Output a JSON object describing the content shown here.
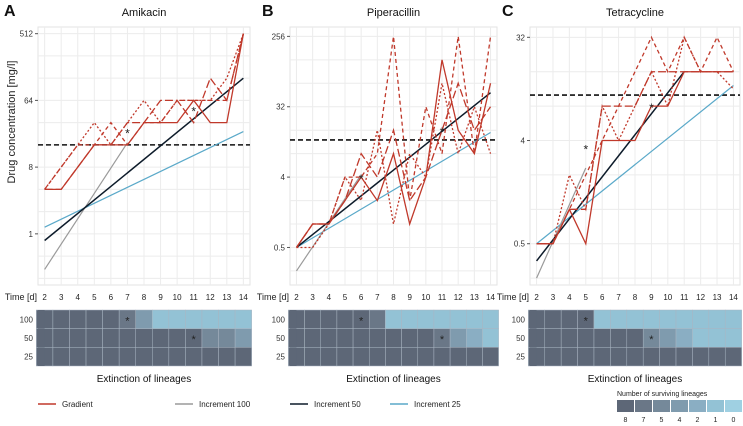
{
  "shared": {
    "ylabel": "Drug concentration [mg/l]",
    "time_label": "Time [d]",
    "extinction_label": "Extinction of lineages",
    "days": [
      2,
      3,
      4,
      5,
      6,
      7,
      8,
      9,
      10,
      11,
      12,
      13,
      14
    ],
    "heat_rows": [
      "100",
      "50",
      "25"
    ],
    "asterisk": "*"
  },
  "legend": {
    "items": [
      {
        "key": "gradient",
        "label": "Gradient",
        "color": "#c0392b"
      },
      {
        "key": "inc100",
        "label": "Increment 100",
        "color": "#9a9a9a"
      },
      {
        "key": "inc50",
        "label": "Increment 50",
        "color": "#0d1b2a"
      },
      {
        "key": "inc25",
        "label": "Increment 25",
        "color": "#5aa9c9"
      }
    ],
    "colorbar_title": "Number of surviving lineages",
    "colorbar_labels": [
      "8",
      "7",
      "5",
      "4",
      "2",
      "1",
      "0"
    ],
    "colorbar_colors": [
      "#5d6777",
      "#6a7787",
      "#75899a",
      "#7f9bae",
      "#8aaec3",
      "#93c2d5",
      "#9fd0e2"
    ]
  },
  "chart_data": [
    {
      "type": "line",
      "panel_letter": "A",
      "title": "Amikacin",
      "yscale": "log2",
      "ylim_log2": [
        -2.3,
        9.3
      ],
      "yticks": [
        {
          "value": 1,
          "label": "1"
        },
        {
          "value": 8,
          "label": "8"
        },
        {
          "value": 64,
          "label": "64"
        },
        {
          "value": 512,
          "label": "512"
        }
      ],
      "threshold": 16,
      "gradient_replicates": [
        {
          "style": "solid",
          "values_log2": [
            2,
            2,
            3,
            4,
            4,
            4,
            5,
            5,
            5,
            6,
            5,
            5,
            9
          ]
        },
        {
          "style": "dotted",
          "values_log2": [
            2,
            3,
            4,
            5,
            4,
            5,
            6,
            5,
            6,
            6,
            6,
            7,
            9
          ]
        },
        {
          "style": "dashed",
          "values_log2": [
            2,
            3,
            4,
            4,
            5,
            4,
            5,
            5,
            6,
            6,
            6,
            6,
            9
          ]
        },
        {
          "style": "longdash",
          "values_log2": [
            2,
            2,
            3,
            4,
            4,
            5,
            5,
            6,
            6,
            5,
            7,
            6,
            9
          ]
        }
      ],
      "increments": {
        "inc100": {
          "x": [
            2,
            7
          ],
          "log2": [
            -1.6,
            4.1
          ]
        },
        "inc50": {
          "x": [
            2,
            14
          ],
          "log2": [
            -0.3,
            7.0
          ]
        },
        "inc25": {
          "x": [
            2,
            14
          ],
          "log2": [
            0.3,
            4.6
          ]
        }
      },
      "asterisks": [
        {
          "day": 7,
          "log2": 4.6
        },
        {
          "day": 11,
          "log2": 5.6
        }
      ],
      "heatmap": [
        [
          8,
          8,
          8,
          8,
          8,
          7,
          4,
          1,
          1,
          1,
          1,
          1,
          1
        ],
        [
          8,
          8,
          8,
          8,
          8,
          8,
          8,
          8,
          8,
          8,
          5,
          5,
          4
        ],
        [
          8,
          8,
          8,
          8,
          8,
          8,
          8,
          8,
          8,
          8,
          8,
          8,
          8
        ]
      ],
      "heat_asterisks": [
        {
          "row": 0,
          "day": 7
        },
        {
          "row": 1,
          "day": 11
        }
      ]
    },
    {
      "type": "line",
      "panel_letter": "B",
      "title": "Piperacillin",
      "yscale": "log2",
      "ylim_log2": [
        -2.6,
        8.4
      ],
      "yticks": [
        {
          "value": 0.5,
          "label": "0.5"
        },
        {
          "value": 4,
          "label": "4"
        },
        {
          "value": 32,
          "label": "32"
        },
        {
          "value": 256,
          "label": "256"
        }
      ],
      "threshold": 12,
      "gradient_replicates": [
        {
          "style": "solid",
          "values_log2": [
            -1,
            0,
            0,
            1,
            2,
            1,
            3,
            0,
            2,
            7,
            4,
            3,
            6
          ]
        },
        {
          "style": "dotted",
          "values_log2": [
            -1,
            -1,
            0,
            2,
            1,
            4,
            0,
            3,
            2,
            6,
            3,
            5,
            3
          ]
        },
        {
          "style": "dashed",
          "values_log2": [
            -1,
            0,
            0,
            2,
            2,
            3,
            8,
            1,
            5,
            3,
            8,
            3,
            8
          ]
        },
        {
          "style": "longdash",
          "values_log2": [
            -1,
            0,
            0,
            1,
            3,
            2,
            4,
            1,
            2,
            4,
            6,
            4,
            5
          ]
        }
      ],
      "increments": {
        "inc100": {
          "x": [
            2,
            6
          ],
          "log2": [
            -2.0,
            2.1
          ]
        },
        "inc50": {
          "x": [
            2,
            14
          ],
          "log2": [
            -1.0,
            5.6
          ]
        },
        "inc25": {
          "x": [
            2,
            14
          ],
          "log2": [
            -1.0,
            3.9
          ]
        }
      },
      "asterisks": [
        {
          "day": 6,
          "log2": 2.0
        },
        {
          "day": 11,
          "log2": 4.0
        }
      ],
      "heatmap": [
        [
          8,
          8,
          8,
          8,
          8,
          7,
          1,
          1,
          1,
          1,
          1,
          1,
          1
        ],
        [
          8,
          8,
          8,
          8,
          8,
          8,
          8,
          8,
          8,
          7,
          4,
          2,
          1
        ],
        [
          8,
          8,
          8,
          8,
          8,
          8,
          8,
          8,
          8,
          8,
          8,
          8,
          8
        ]
      ],
      "heat_asterisks": [
        {
          "row": 0,
          "day": 6
        },
        {
          "row": 1,
          "day": 11
        }
      ]
    },
    {
      "type": "line",
      "panel_letter": "C",
      "title": "Tetracycline",
      "yscale": "log2",
      "ylim_log2": [
        -2.2,
        5.3
      ],
      "yticks": [
        {
          "value": 0.5,
          "label": "0.5"
        },
        {
          "value": 4,
          "label": "4"
        },
        {
          "value": 32,
          "label": "32"
        }
      ],
      "threshold": 10,
      "gradient_replicates": [
        {
          "style": "solid",
          "values_log2": [
            -1,
            -1,
            0,
            -1,
            2,
            2,
            2,
            3,
            3,
            4,
            4,
            4,
            4
          ]
        },
        {
          "style": "dotted",
          "values_log2": [
            -1,
            -1,
            1,
            0,
            3,
            2,
            3,
            4,
            3,
            5,
            4,
            4,
            3.5
          ]
        },
        {
          "style": "dashed",
          "values_log2": [
            -1,
            -1,
            0,
            1,
            2,
            3,
            4,
            5,
            4,
            5,
            4,
            5,
            4
          ]
        },
        {
          "style": "longdash",
          "values_log2": [
            -1,
            -1,
            0,
            0,
            3,
            3,
            3,
            4,
            4,
            4,
            4,
            4,
            4
          ]
        }
      ],
      "increments": {
        "inc100": {
          "x": [
            2,
            5
          ],
          "log2": [
            -2.0,
            1.2
          ]
        },
        "inc50": {
          "x": [
            2,
            11
          ],
          "log2": [
            -1.5,
            4.0
          ]
        },
        "inc25": {
          "x": [
            2,
            14
          ],
          "log2": [
            -1.0,
            3.6
          ]
        }
      },
      "asterisks": [
        {
          "day": 5,
          "log2": 1.8
        },
        {
          "day": 9,
          "log2": 3.0
        }
      ],
      "heatmap": [
        [
          8,
          8,
          8,
          8,
          1,
          1,
          1,
          1,
          1,
          1,
          1,
          1,
          1
        ],
        [
          8,
          8,
          8,
          8,
          8,
          8,
          8,
          5,
          4,
          2,
          1,
          1,
          1
        ],
        [
          8,
          8,
          8,
          8,
          8,
          8,
          8,
          8,
          8,
          8,
          8,
          8,
          8
        ]
      ],
      "heat_asterisks": [
        {
          "row": 0,
          "day": 5
        },
        {
          "row": 1,
          "day": 9
        }
      ]
    }
  ]
}
